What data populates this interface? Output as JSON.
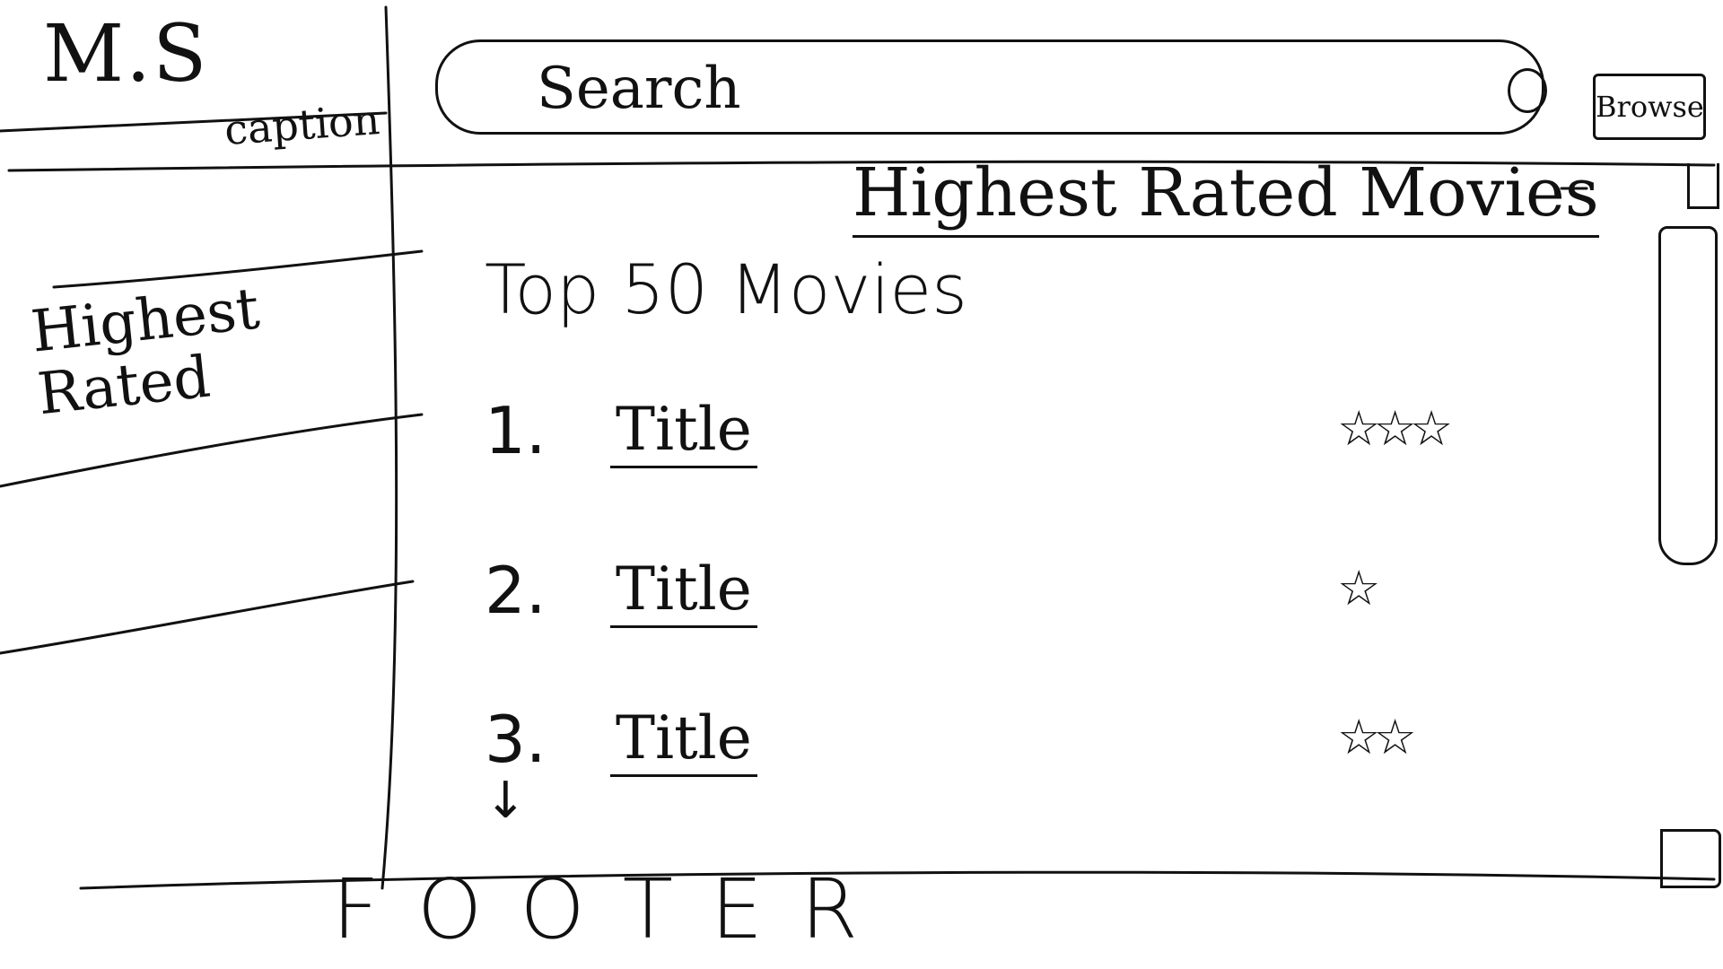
{
  "header": {
    "logo": "M.S",
    "caption": "caption",
    "search": {
      "placeholder": "Search",
      "value": ""
    },
    "browse_label": "Browse"
  },
  "sidebar": {
    "items": [
      {
        "label": "Highest Rated"
      }
    ]
  },
  "main": {
    "page_heading": "Highest Rated Movies",
    "section_title": "Top 50 Movies",
    "movies": [
      {
        "rank": "1.",
        "title": "Title",
        "rating": 3,
        "stars": "☆☆☆"
      },
      {
        "rank": "2.",
        "title": "Title",
        "rating": 1,
        "stars": "☆"
      },
      {
        "rank": "3.",
        "title": "Title",
        "rating": 2,
        "stars": "☆☆"
      }
    ],
    "more_indicator": "↓"
  },
  "footer": {
    "label": "FOOTER"
  }
}
